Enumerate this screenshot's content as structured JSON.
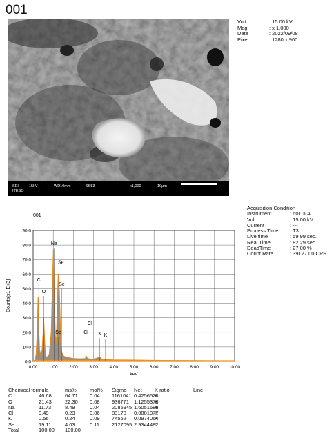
{
  "sample_id": "001",
  "sem_image": {
    "footer": {
      "detector": "SEI",
      "voltage": "15kV",
      "wd": "WD10mm",
      "spot": "SS53",
      "mag": "x1,000",
      "scale": "10μm",
      "org": "ITESO"
    }
  },
  "sem_info": [
    {
      "key": "Volt",
      "value": ": 15.00 kV"
    },
    {
      "key": "Mag.",
      "value": ": x 1,000"
    },
    {
      "key": "Date",
      "value": ": 2022/09/08"
    },
    {
      "key": "Pixel",
      "value": ": 1280 x 960"
    }
  ],
  "acquisition": {
    "title": "Acquisition Condition",
    "rows": [
      {
        "key": "Instrument",
        "value": ": 6010LA"
      },
      {
        "key": "Volt",
        "value": ": 15.00 kV"
      },
      {
        "key": "Current",
        "value": ": ---"
      },
      {
        "key": "Process Time",
        "value": ": T3"
      },
      {
        "key": "Live time",
        "value": ": 59.99 sec."
      },
      {
        "key": "Real Time",
        "value": ": 82.29 sec."
      },
      {
        "key": "DeadTime",
        "value": ": 27.00 %"
      },
      {
        "key": "Count Rate",
        "value": ": 39127.00 CPS"
      }
    ]
  },
  "chart_data": {
    "type": "area",
    "title": "001",
    "xlabel": "keV",
    "ylabel": "Counts[x1.E+3]",
    "xlim": [
      0,
      10
    ],
    "ylim": [
      0,
      90
    ],
    "grid": true,
    "x_ticks": [
      "0.00",
      "1.00",
      "2.00",
      "3.00",
      "4.00",
      "5.00",
      "6.00",
      "7.00",
      "8.00",
      "9.00",
      "10.00"
    ],
    "y_ticks": [
      "0.0",
      "10.0",
      "20.0",
      "30.0",
      "40.0",
      "50.0",
      "60.0",
      "70.0",
      "80.0",
      "90.0"
    ],
    "spectrum": {
      "x": [
        0.0,
        0.1,
        0.15,
        0.2,
        0.25,
        0.28,
        0.32,
        0.38,
        0.45,
        0.5,
        0.52,
        0.55,
        0.6,
        0.65,
        0.7,
        0.8,
        0.9,
        0.97,
        1.01,
        1.04,
        1.1,
        1.15,
        1.2,
        1.25,
        1.3,
        1.34,
        1.38,
        1.42,
        1.5,
        1.6,
        1.8,
        2.0,
        2.3,
        2.6,
        2.62,
        2.7,
        2.9,
        3.0,
        3.31,
        3.4,
        3.6,
        4.0,
        5.0,
        6.0,
        7.0,
        8.0,
        9.0,
        10.0
      ],
      "y": [
        0,
        1,
        5,
        18,
        44,
        22,
        8,
        4,
        8,
        20,
        30,
        20,
        6,
        3,
        3,
        5,
        20,
        58,
        77,
        50,
        18,
        12,
        38,
        60,
        48,
        30,
        12,
        6,
        4,
        3,
        2.5,
        2,
        1.8,
        2,
        4,
        2,
        1.5,
        1.5,
        3,
        1.5,
        1.2,
        1,
        0.9,
        0.7,
        0.6,
        0.5,
        0.4,
        0.3
      ]
    },
    "peak_labels": [
      {
        "text": "C",
        "x": 0.28,
        "y": 55
      },
      {
        "text": "O",
        "x": 0.53,
        "y": 47
      },
      {
        "text": "Na",
        "x": 1.04,
        "y": 80
      },
      {
        "text": "Se",
        "x": 1.38,
        "y": 67
      },
      {
        "text": "Se",
        "x": 1.42,
        "y": 52
      },
      {
        "text": "Se",
        "x": 1.25,
        "y": 19
      },
      {
        "text": "Cl",
        "x": 2.62,
        "y": 19
      },
      {
        "text": "Cl",
        "x": 2.82,
        "y": 25
      },
      {
        "text": "K",
        "x": 3.31,
        "y": 18
      },
      {
        "text": "K",
        "x": 3.59,
        "y": 17
      }
    ],
    "results": {
      "headers": [
        "Chemical formula",
        "ms%",
        "mol%",
        "Sigma",
        "Net",
        "K ratio",
        "Line"
      ],
      "rows": [
        [
          "C",
          "46.68",
          "64.71",
          "0.04",
          "1161041",
          "0.4256520",
          "K"
        ],
        [
          "O",
          "21.43",
          "22.30",
          "0.08",
          "936771",
          "1.1255378",
          "K"
        ],
        [
          "Na",
          "11.73",
          "8.49",
          "0.04",
          "2085945",
          "1.6051689",
          "K"
        ],
        [
          "Cl",
          "0.49",
          "0.23",
          "0.06",
          "83170",
          "0.0801077",
          "K"
        ],
        [
          "K",
          "0.56",
          "0.24",
          "0.09",
          "74552",
          "0.0974064",
          "K"
        ],
        [
          "Se",
          "19.11",
          "4.03",
          "0.11",
          "2127095",
          "2.9344482",
          "L"
        ]
      ],
      "total": [
        "Total",
        "100.00",
        "100.00"
      ]
    }
  }
}
